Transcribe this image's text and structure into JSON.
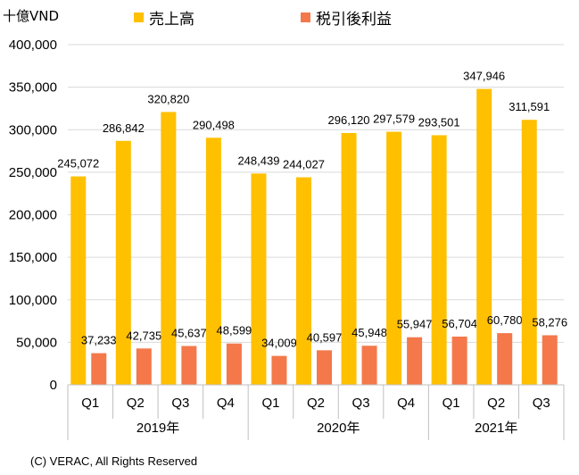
{
  "unit_label": "十億VND",
  "copyright": "(C) VERAC, All Rights Reserved",
  "colors": {
    "revenue": "#FFC000",
    "profit": "#F4784A",
    "grid": "#D9D9D9",
    "axis": "#BFBFBF"
  },
  "chart_data": {
    "type": "bar",
    "quarters": [
      "Q1",
      "Q2",
      "Q3",
      "Q4",
      "Q1",
      "Q2",
      "Q3",
      "Q4",
      "Q1",
      "Q2",
      "Q3"
    ],
    "year_groups": [
      {
        "label": "2019年",
        "count": 4
      },
      {
        "label": "2020年",
        "count": 4
      },
      {
        "label": "2021年",
        "count": 3
      }
    ],
    "series": [
      {
        "name": "売上高",
        "values": [
          245072,
          286842,
          320820,
          290498,
          248439,
          244027,
          296120,
          297579,
          293501,
          347946,
          311591
        ]
      },
      {
        "name": "税引後利益",
        "values": [
          37233,
          42735,
          45637,
          48599,
          34009,
          40597,
          45948,
          55947,
          56704,
          60780,
          58276
        ]
      }
    ],
    "ylim": [
      0,
      400000
    ],
    "yticks": [
      0,
      50000,
      100000,
      150000,
      200000,
      250000,
      300000,
      350000,
      400000
    ],
    "grid": true,
    "legend_position": "top"
  }
}
